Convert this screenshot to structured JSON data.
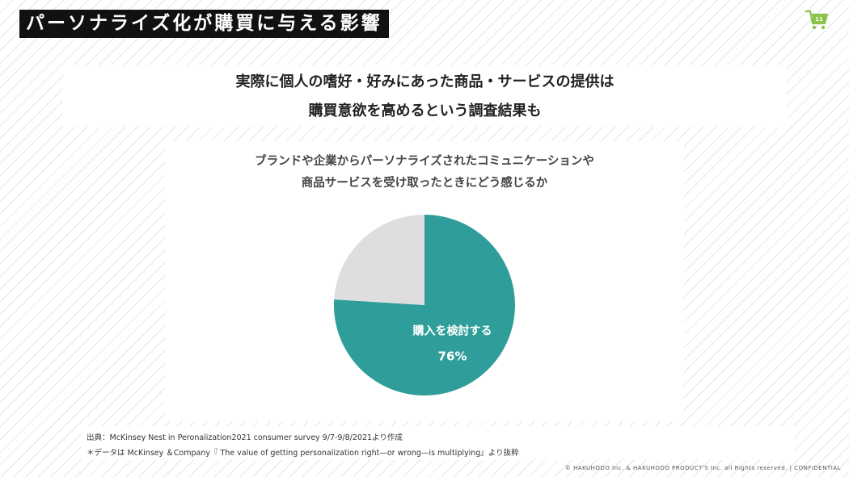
{
  "slide": {
    "title": "パーソナライズ化が購買に与える影響",
    "page_number": "11"
  },
  "headline": {
    "line1": "実際に個人の嗜好・好みにあった商品・サービスの提供は",
    "line2": "購買意欲を高めるという調査結果も"
  },
  "question": {
    "line1": "ブランドや企業からパーソナライズされたコミュニケーションや",
    "line2": "商品サービスを受け取ったときにどう感じるか"
  },
  "chart_data": {
    "type": "pie",
    "slices": [
      {
        "label": "購入を検討する",
        "value": 76,
        "value_label": "76%",
        "color": "#2f9e9a"
      },
      {
        "label": "",
        "value": 24,
        "color": "#dedede"
      }
    ],
    "start_angle": "12 o'clock",
    "direction": "clockwise"
  },
  "source": {
    "line1": "出典：McKinsey Nest in Peronalization2021 consumer survey 9/7-9/8/2021より作成",
    "line2": "＊データは McKinsey ＆Company『 The value of getting personalization right—or wrong—is multiplying』より抜粋"
  },
  "copyright": "© HAKUHODO Inc. & HAKUHODO PRODUCT'S Inc. all Rights reserved. | CONFIDENTIAL",
  "colors": {
    "accent": "#2f9e9a",
    "title_bg": "#111111",
    "icon_green": "#8bc34a"
  },
  "icons": {
    "page_badge": "shopping-cart-icon"
  }
}
